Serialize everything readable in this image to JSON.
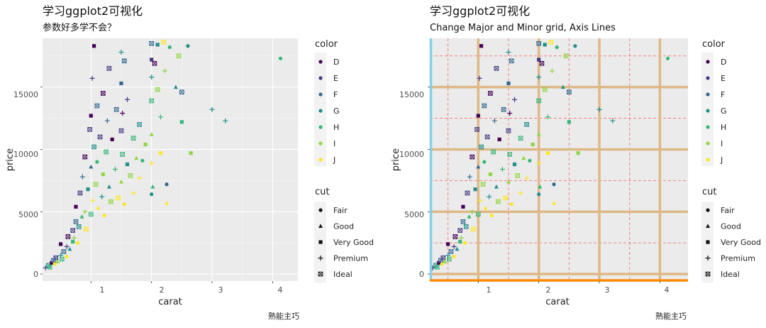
{
  "colors": {
    "D": "#440154",
    "E": "#443a83",
    "F": "#31688e",
    "G": "#21908c",
    "H": "#35b779",
    "I": "#8fd744",
    "J": "#fde725",
    "panel_bg": "#ebebeb",
    "grid_custom_major": "#deb887",
    "grid_custom_minor": "#f08080",
    "axis_y_line": "#87ceeb",
    "axis_x_line": "#ff8c00"
  },
  "chart_data": [
    {
      "type": "scatter",
      "title": "学习ggplot2可视化",
      "subtitle": "参数好多学不会？",
      "xlabel": "carat",
      "ylabel": "price",
      "caption": "熟能主巧",
      "xlim": [
        0.2,
        4.3
      ],
      "ylim": [
        -500,
        19000
      ],
      "x_ticks": [
        1,
        2,
        3,
        4
      ],
      "y_ticks": [
        0,
        5000,
        10000,
        15000
      ],
      "y_tick_labels": [
        "0",
        "5000",
        "10000",
        "15000"
      ],
      "grid": "default",
      "legend_color": {
        "title": "color",
        "items": [
          "D",
          "E",
          "F",
          "G",
          "H",
          "I",
          "J"
        ]
      },
      "legend_shape": {
        "title": "cut",
        "items": [
          "Fair",
          "Good",
          "Very Good",
          "Premium",
          "Ideal"
        ]
      }
    },
    {
      "type": "scatter",
      "title": "学习ggplot2可视化",
      "subtitle": "Change Major and Minor grid, Axis Lines",
      "xlabel": "carat",
      "ylabel": "price",
      "caption": "熟能主巧",
      "xlim": [
        0.2,
        4.3
      ],
      "ylim": [
        -500,
        19000
      ],
      "x_ticks": [
        1,
        2,
        3,
        4
      ],
      "y_ticks": [
        0,
        5000,
        10000,
        15000
      ],
      "y_tick_labels": [
        "0",
        "5000",
        "10000",
        "15000"
      ],
      "grid": "custom: major solid tan, minor dashed salmon, y axis line skyblue, x axis line orange",
      "legend_color": {
        "title": "color",
        "items": [
          "D",
          "E",
          "F",
          "G",
          "H",
          "I",
          "J"
        ]
      },
      "legend_shape": {
        "title": "cut",
        "items": [
          "Fair",
          "Good",
          "Very Good",
          "Premium",
          "Ideal"
        ]
      }
    }
  ],
  "points": [
    {
      "x": 0.25,
      "y": 500,
      "c": "E",
      "s": "Premium"
    },
    {
      "x": 0.3,
      "y": 700,
      "c": "G",
      "s": "Ideal"
    },
    {
      "x": 0.32,
      "y": 550,
      "c": "H",
      "s": "Ideal"
    },
    {
      "x": 0.35,
      "y": 900,
      "c": "D",
      "s": "Very Good"
    },
    {
      "x": 0.38,
      "y": 1100,
      "c": "F",
      "s": "Ideal"
    },
    {
      "x": 0.4,
      "y": 800,
      "c": "J",
      "s": "Fair"
    },
    {
      "x": 0.42,
      "y": 1300,
      "c": "E",
      "s": "Ideal"
    },
    {
      "x": 0.45,
      "y": 1000,
      "c": "I",
      "s": "Good"
    },
    {
      "x": 0.5,
      "y": 1500,
      "c": "G",
      "s": "Premium"
    },
    {
      "x": 0.5,
      "y": 2400,
      "c": "D",
      "s": "Very Good"
    },
    {
      "x": 0.52,
      "y": 1200,
      "c": "H",
      "s": "Ideal"
    },
    {
      "x": 0.55,
      "y": 1800,
      "c": "F",
      "s": "Ideal"
    },
    {
      "x": 0.6,
      "y": 2200,
      "c": "E",
      "s": "Premium"
    },
    {
      "x": 0.6,
      "y": 1400,
      "c": "J",
      "s": "Fair"
    },
    {
      "x": 0.62,
      "y": 3000,
      "c": "D",
      "s": "Ideal"
    },
    {
      "x": 0.65,
      "y": 2000,
      "c": "G",
      "s": "Good"
    },
    {
      "x": 0.7,
      "y": 2600,
      "c": "H",
      "s": "Very Good"
    },
    {
      "x": 0.7,
      "y": 3500,
      "c": "E",
      "s": "Ideal"
    },
    {
      "x": 0.72,
      "y": 2900,
      "c": "I",
      "s": "Premium"
    },
    {
      "x": 0.75,
      "y": 4200,
      "c": "F",
      "s": "Ideal"
    },
    {
      "x": 0.75,
      "y": 5400,
      "c": "D",
      "s": "Very Good"
    },
    {
      "x": 0.78,
      "y": 2500,
      "c": "J",
      "s": "Fair"
    },
    {
      "x": 0.8,
      "y": 3800,
      "c": "G",
      "s": "Ideal"
    },
    {
      "x": 0.82,
      "y": 6500,
      "c": "E",
      "s": "Ideal"
    },
    {
      "x": 0.85,
      "y": 4600,
      "c": "H",
      "s": "Good"
    },
    {
      "x": 0.86,
      "y": 7800,
      "c": "F",
      "s": "Premium"
    },
    {
      "x": 0.9,
      "y": 5000,
      "c": "I",
      "s": "Premium"
    },
    {
      "x": 0.9,
      "y": 9400,
      "c": "D",
      "s": "Ideal"
    },
    {
      "x": 0.92,
      "y": 3600,
      "c": "J",
      "s": "Ideal"
    },
    {
      "x": 0.95,
      "y": 6800,
      "c": "G",
      "s": "Very Good"
    },
    {
      "x": 0.98,
      "y": 11600,
      "c": "E",
      "s": "Ideal"
    },
    {
      "x": 1.0,
      "y": 4800,
      "c": "H",
      "s": "Ideal"
    },
    {
      "x": 1.0,
      "y": 8600,
      "c": "F",
      "s": "Good"
    },
    {
      "x": 1.0,
      "y": 12700,
      "c": "D",
      "s": "Very Good"
    },
    {
      "x": 1.02,
      "y": 15700,
      "c": "E",
      "s": "Premium"
    },
    {
      "x": 1.03,
      "y": 5900,
      "c": "J",
      "s": "Premium"
    },
    {
      "x": 1.05,
      "y": 10200,
      "c": "G",
      "s": "Ideal"
    },
    {
      "x": 1.05,
      "y": 18300,
      "c": "D",
      "s": "Very Good"
    },
    {
      "x": 1.08,
      "y": 7200,
      "c": "I",
      "s": "Ideal"
    },
    {
      "x": 1.1,
      "y": 13500,
      "c": "F",
      "s": "Ideal"
    },
    {
      "x": 1.1,
      "y": 9000,
      "c": "H",
      "s": "Fair"
    },
    {
      "x": 1.12,
      "y": 5300,
      "c": "J",
      "s": "Good"
    },
    {
      "x": 1.15,
      "y": 11000,
      "c": "E",
      "s": "Ideal"
    },
    {
      "x": 1.18,
      "y": 6200,
      "c": "G",
      "s": "Premium"
    },
    {
      "x": 1.2,
      "y": 14500,
      "c": "D",
      "s": "Ideal"
    },
    {
      "x": 1.2,
      "y": 8000,
      "c": "I",
      "s": "Very Good"
    },
    {
      "x": 1.22,
      "y": 4700,
      "c": "J",
      "s": "Fair"
    },
    {
      "x": 1.25,
      "y": 9800,
      "c": "H",
      "s": "Ideal"
    },
    {
      "x": 1.27,
      "y": 12300,
      "c": "F",
      "s": "Premium"
    },
    {
      "x": 1.3,
      "y": 7000,
      "c": "G",
      "s": "Good"
    },
    {
      "x": 1.3,
      "y": 16500,
      "c": "E",
      "s": "Ideal"
    },
    {
      "x": 1.33,
      "y": 5800,
      "c": "I",
      "s": "Ideal"
    },
    {
      "x": 1.35,
      "y": 10800,
      "c": "D",
      "s": "Very Good"
    },
    {
      "x": 1.4,
      "y": 8400,
      "c": "H",
      "s": "Premium"
    },
    {
      "x": 1.42,
      "y": 13200,
      "c": "F",
      "s": "Ideal"
    },
    {
      "x": 1.45,
      "y": 6100,
      "c": "J",
      "s": "Ideal"
    },
    {
      "x": 1.5,
      "y": 11500,
      "c": "E",
      "s": "Ideal"
    },
    {
      "x": 1.5,
      "y": 15300,
      "c": "F",
      "s": "Very Good"
    },
    {
      "x": 1.5,
      "y": 17800,
      "c": "G",
      "s": "Premium"
    },
    {
      "x": 1.5,
      "y": 7400,
      "c": "I",
      "s": "Good"
    },
    {
      "x": 1.52,
      "y": 9600,
      "c": "H",
      "s": "Ideal"
    },
    {
      "x": 1.52,
      "y": 12900,
      "c": "D",
      "s": "Premium"
    },
    {
      "x": 1.55,
      "y": 5600,
      "c": "J",
      "s": "Fair"
    },
    {
      "x": 1.55,
      "y": 17100,
      "c": "F",
      "s": "Ideal"
    },
    {
      "x": 1.6,
      "y": 8800,
      "c": "G",
      "s": "Very Good"
    },
    {
      "x": 1.6,
      "y": 14000,
      "c": "E",
      "s": "Premium"
    },
    {
      "x": 1.65,
      "y": 7900,
      "c": "I",
      "s": "Ideal"
    },
    {
      "x": 1.7,
      "y": 10900,
      "c": "H",
      "s": "Ideal"
    },
    {
      "x": 1.7,
      "y": 6500,
      "c": "J",
      "s": "Premium"
    },
    {
      "x": 1.75,
      "y": 9300,
      "c": "I",
      "s": "Good"
    },
    {
      "x": 1.8,
      "y": 12000,
      "c": "G",
      "s": "Ideal"
    },
    {
      "x": 1.8,
      "y": 7700,
      "c": "J",
      "s": "Premium"
    },
    {
      "x": 1.85,
      "y": 9100,
      "c": "H",
      "s": "Fair"
    },
    {
      "x": 1.9,
      "y": 10400,
      "c": "I",
      "s": "Very Good"
    },
    {
      "x": 2.0,
      "y": 18500,
      "c": "F",
      "s": "Ideal"
    },
    {
      "x": 2.0,
      "y": 17200,
      "c": "E",
      "s": "Very Good"
    },
    {
      "x": 2.0,
      "y": 15800,
      "c": "G",
      "s": "Premium"
    },
    {
      "x": 2.0,
      "y": 13900,
      "c": "H",
      "s": "Ideal"
    },
    {
      "x": 2.0,
      "y": 11200,
      "c": "I",
      "s": "Good"
    },
    {
      "x": 2.0,
      "y": 8900,
      "c": "J",
      "s": "Premium"
    },
    {
      "x": 2.0,
      "y": 6400,
      "c": "G",
      "s": "Fair"
    },
    {
      "x": 2.02,
      "y": 7000,
      "c": "H",
      "s": "Good"
    },
    {
      "x": 2.05,
      "y": 16900,
      "c": "D",
      "s": "Ideal"
    },
    {
      "x": 2.1,
      "y": 14800,
      "c": "I",
      "s": "Ideal"
    },
    {
      "x": 2.1,
      "y": 18400,
      "c": "G",
      "s": "Very Good"
    },
    {
      "x": 2.15,
      "y": 12600,
      "c": "H",
      "s": "Premium"
    },
    {
      "x": 2.15,
      "y": 9700,
      "c": "J",
      "s": "Very Good"
    },
    {
      "x": 2.2,
      "y": 18600,
      "c": "J",
      "s": "Ideal"
    },
    {
      "x": 2.22,
      "y": 16300,
      "c": "I",
      "s": "Premium"
    },
    {
      "x": 2.25,
      "y": 5700,
      "c": "J",
      "s": "Good"
    },
    {
      "x": 2.25,
      "y": 7200,
      "c": "F",
      "s": "Fair"
    },
    {
      "x": 2.3,
      "y": 18200,
      "c": "H",
      "s": "Fair"
    },
    {
      "x": 2.4,
      "y": 15000,
      "c": "G",
      "s": "Good"
    },
    {
      "x": 2.45,
      "y": 17500,
      "c": "I",
      "s": "Ideal"
    },
    {
      "x": 2.5,
      "y": 14600,
      "c": "F",
      "s": "Ideal"
    },
    {
      "x": 2.5,
      "y": 12200,
      "c": "H",
      "s": "Very Good"
    },
    {
      "x": 2.6,
      "y": 18300,
      "c": "G",
      "s": "Fair"
    },
    {
      "x": 2.65,
      "y": 9700,
      "c": "I",
      "s": "Very Good"
    },
    {
      "x": 3.0,
      "y": 13200,
      "c": "G",
      "s": "Premium"
    },
    {
      "x": 3.22,
      "y": 12300,
      "c": "G",
      "s": "Premium"
    },
    {
      "x": 4.13,
      "y": 17300,
      "c": "H",
      "s": "Fair"
    }
  ]
}
